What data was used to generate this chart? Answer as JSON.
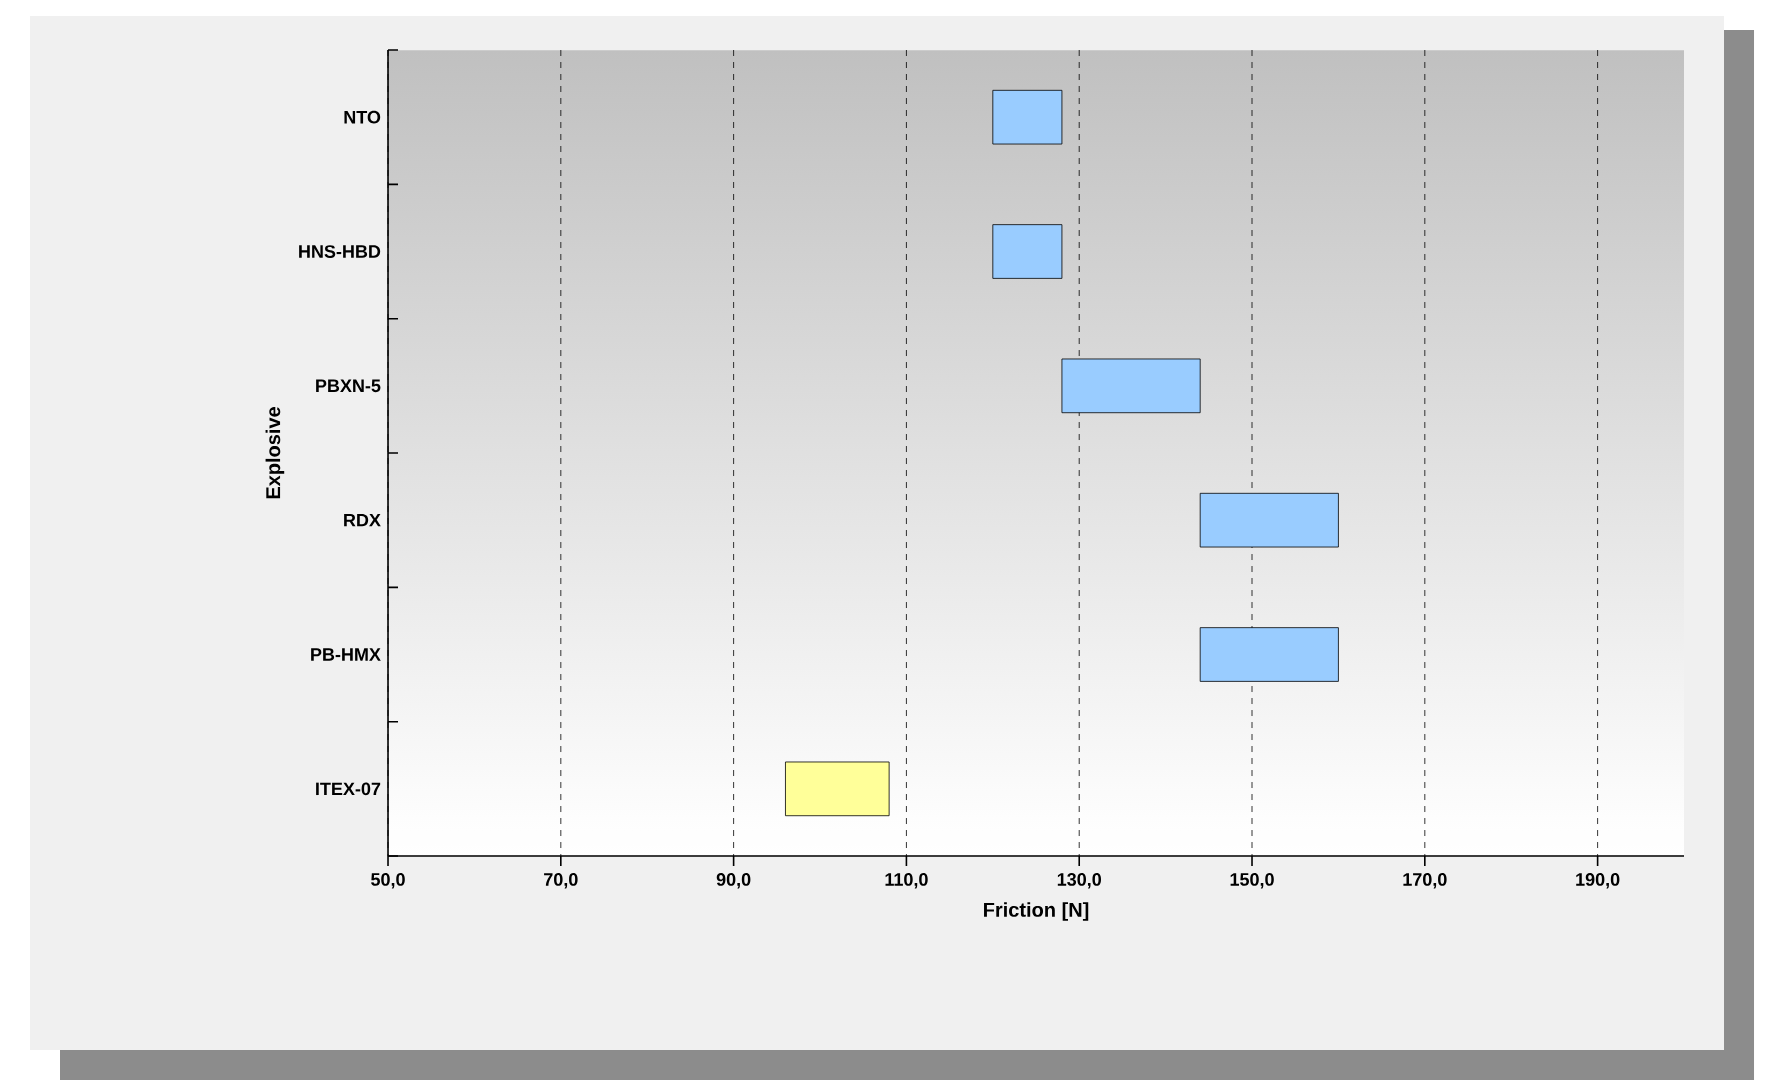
{
  "chart_data": {
    "type": "bar",
    "orientation": "horizontal",
    "xlabel": "Friction [N]",
    "ylabel": "Explosive",
    "categories": [
      "NTO",
      "HNS-HBD",
      "PBXN-5",
      "RDX",
      "PB-HMX",
      "ITEX-07"
    ],
    "base": [
      120,
      120,
      128,
      144,
      144,
      96
    ],
    "values": [
      8,
      8,
      16,
      16,
      16,
      12
    ],
    "colors": [
      "#99ccff",
      "#99ccff",
      "#99ccff",
      "#99ccff",
      "#99ccff",
      "#ffff99"
    ],
    "xlim": [
      50,
      200
    ],
    "xticks": [
      {
        "value": 50,
        "label": "50,0"
      },
      {
        "value": 70,
        "label": "70,0"
      },
      {
        "value": 90,
        "label": "90,0"
      },
      {
        "value": 110,
        "label": "110,0"
      },
      {
        "value": 130,
        "label": "130,0"
      },
      {
        "value": 150,
        "label": "150,0"
      },
      {
        "value": 170,
        "label": "170,0"
      },
      {
        "value": 190,
        "label": "190,0"
      }
    ],
    "grid": "x"
  }
}
